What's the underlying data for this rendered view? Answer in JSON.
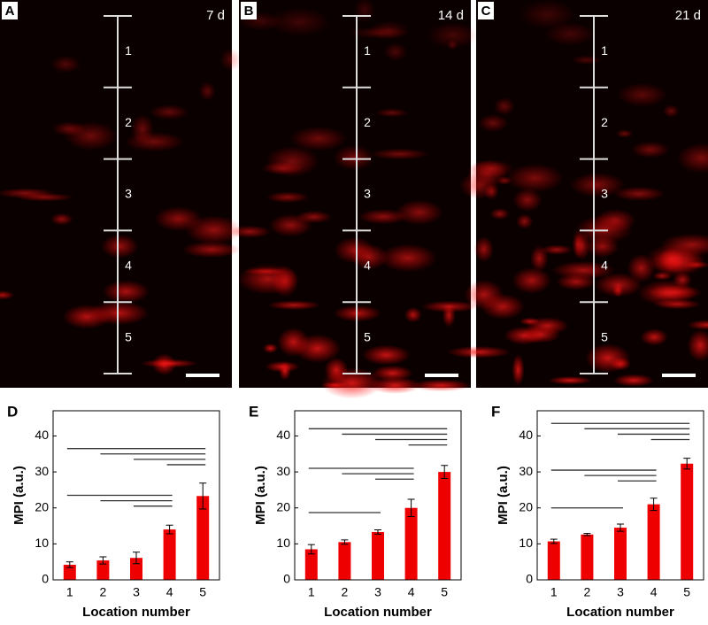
{
  "images": [
    {
      "panel": "A",
      "time": "7 d",
      "locations": [
        "1",
        "2",
        "3",
        "4",
        "5"
      ]
    },
    {
      "panel": "B",
      "time": "14 d",
      "locations": [
        "1",
        "2",
        "3",
        "4",
        "5"
      ]
    },
    {
      "panel": "C",
      "time": "21 d",
      "locations": [
        "1",
        "2",
        "3",
        "4",
        "5"
      ]
    }
  ],
  "chart_data": [
    {
      "type": "bar",
      "panel": "D",
      "xlabel": "Location number",
      "ylabel": "MPI (a.u.)",
      "categories": [
        "1",
        "2",
        "3",
        "4",
        "5"
      ],
      "values": [
        4.2,
        5.4,
        6.1,
        14,
        23.3
      ],
      "errors": [
        0.8,
        1,
        1.6,
        1.2,
        3.6
      ],
      "color": "#ee0000",
      "ylim": [
        0,
        47
      ],
      "yticks": [
        0,
        10,
        20,
        30,
        40
      ],
      "comparisons": [
        {
          "from": 1,
          "to": 5,
          "y": 36.5
        },
        {
          "from": 2,
          "to": 5,
          "y": 35
        },
        {
          "from": 3,
          "to": 5,
          "y": 33.5
        },
        {
          "from": 4,
          "to": 5,
          "y": 32
        },
        {
          "from": 1,
          "to": 4,
          "y": 23.5
        },
        {
          "from": 2,
          "to": 4,
          "y": 22
        },
        {
          "from": 3,
          "to": 4,
          "y": 20.5
        }
      ]
    },
    {
      "type": "bar",
      "panel": "E",
      "xlabel": "Location number",
      "ylabel": "MPI (a.u.)",
      "categories": [
        "1",
        "2",
        "3",
        "4",
        "5"
      ],
      "values": [
        8.5,
        10.5,
        13.3,
        20,
        30
      ],
      "errors": [
        1.3,
        0.6,
        0.6,
        2.4,
        1.8
      ],
      "color": "#ee0000",
      "ylim": [
        0,
        47
      ],
      "yticks": [
        0,
        10,
        20,
        30,
        40
      ],
      "comparisons": [
        {
          "from": 1,
          "to": 5,
          "y": 42
        },
        {
          "from": 2,
          "to": 5,
          "y": 40.5
        },
        {
          "from": 3,
          "to": 5,
          "y": 39
        },
        {
          "from": 4,
          "to": 5,
          "y": 37.5
        },
        {
          "from": 1,
          "to": 4,
          "y": 31
        },
        {
          "from": 2,
          "to": 4,
          "y": 29.5
        },
        {
          "from": 3,
          "to": 4,
          "y": 28
        },
        {
          "from": 1,
          "to": 3,
          "y": 18.7
        }
      ]
    },
    {
      "type": "bar",
      "panel": "F",
      "xlabel": "Location number",
      "ylabel": "MPI (a.u.)",
      "categories": [
        "1",
        "2",
        "3",
        "4",
        "5"
      ],
      "values": [
        10.7,
        12.6,
        14.5,
        21,
        32.3
      ],
      "errors": [
        0.6,
        0.3,
        1,
        1.7,
        1.5
      ],
      "color": "#ee0000",
      "ylim": [
        0,
        47
      ],
      "yticks": [
        0,
        10,
        20,
        30,
        40
      ],
      "comparisons": [
        {
          "from": 1,
          "to": 5,
          "y": 43.5
        },
        {
          "from": 2,
          "to": 5,
          "y": 42
        },
        {
          "from": 3,
          "to": 5,
          "y": 40.5
        },
        {
          "from": 4,
          "to": 5,
          "y": 39
        },
        {
          "from": 1,
          "to": 4,
          "y": 30.5
        },
        {
          "from": 2,
          "to": 4,
          "y": 29
        },
        {
          "from": 3,
          "to": 4,
          "y": 27.5
        },
        {
          "from": 1,
          "to": 3,
          "y": 20
        }
      ]
    }
  ]
}
